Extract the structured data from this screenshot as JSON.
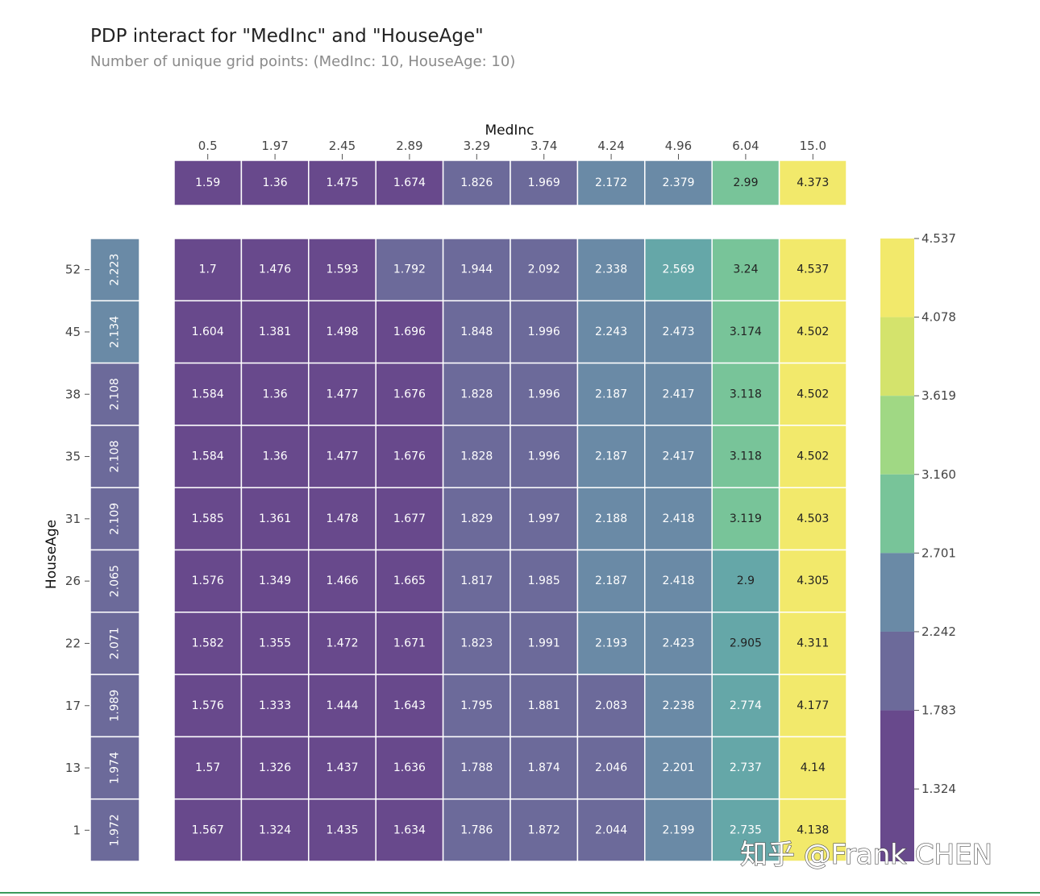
{
  "credit": "知乎 @Frank CHEN",
  "colors": {
    "palette": [
      "#68498c",
      "#6c6a9a",
      "#6a8aa6",
      "#65a7a8",
      "#78c499",
      "#a0d884",
      "#d4e36c",
      "#f2e96b"
    ],
    "text_dark": "#222222",
    "text_light": "#ffffff",
    "grid_line": "#ffffff",
    "accent_rule": "#3a9a5b"
  },
  "chart_data": {
    "type": "heatmap",
    "title": "PDP interact for \"MedInc\" and \"HouseAge\"",
    "subtitle": "Number of unique grid points: (MedInc: 10, HouseAge: 10)",
    "xlabel": "MedInc",
    "ylabel": "HouseAge",
    "x_ticks": [
      "0.5",
      "1.97",
      "2.45",
      "2.89",
      "3.29",
      "3.74",
      "4.24",
      "4.96",
      "6.04",
      "15.0"
    ],
    "y_ticks": [
      "52",
      "45",
      "38",
      "35",
      "31",
      "26",
      "22",
      "17",
      "13",
      "1"
    ],
    "top_marginal": [
      "1.59",
      "1.36",
      "1.475",
      "1.674",
      "1.826",
      "1.969",
      "2.172",
      "2.379",
      "2.99",
      "4.373"
    ],
    "left_marginal": [
      "2.223",
      "2.134",
      "2.108",
      "2.108",
      "2.109",
      "2.065",
      "2.071",
      "1.989",
      "1.974",
      "1.972"
    ],
    "values": [
      [
        "1.7",
        "1.476",
        "1.593",
        "1.792",
        "1.944",
        "2.092",
        "2.338",
        "2.569",
        "3.24",
        "4.537"
      ],
      [
        "1.604",
        "1.381",
        "1.498",
        "1.696",
        "1.848",
        "1.996",
        "2.243",
        "2.473",
        "3.174",
        "4.502"
      ],
      [
        "1.584",
        "1.36",
        "1.477",
        "1.676",
        "1.828",
        "1.996",
        "2.187",
        "2.417",
        "3.118",
        "4.502"
      ],
      [
        "1.584",
        "1.36",
        "1.477",
        "1.676",
        "1.828",
        "1.996",
        "2.187",
        "2.417",
        "3.118",
        "4.502"
      ],
      [
        "1.585",
        "1.361",
        "1.478",
        "1.677",
        "1.829",
        "1.997",
        "2.188",
        "2.418",
        "3.119",
        "4.503"
      ],
      [
        "1.576",
        "1.349",
        "1.466",
        "1.665",
        "1.817",
        "1.985",
        "2.187",
        "2.418",
        "2.9",
        "4.305"
      ],
      [
        "1.582",
        "1.355",
        "1.472",
        "1.671",
        "1.823",
        "1.991",
        "2.193",
        "2.423",
        "2.905",
        "4.311"
      ],
      [
        "1.576",
        "1.333",
        "1.444",
        "1.643",
        "1.795",
        "1.881",
        "2.083",
        "2.238",
        "2.774",
        "4.177"
      ],
      [
        "1.57",
        "1.326",
        "1.437",
        "1.636",
        "1.788",
        "1.874",
        "2.046",
        "2.201",
        "2.737",
        "4.14"
      ],
      [
        "1.567",
        "1.324",
        "1.435",
        "1.634",
        "1.786",
        "1.872",
        "2.044",
        "2.199",
        "2.735",
        "4.138"
      ]
    ],
    "colorbar_ticks": [
      "4.537",
      "4.078",
      "3.619",
      "3.160",
      "2.701",
      "2.242",
      "1.783",
      "1.324"
    ],
    "colorbar_range": [
      1.324,
      4.537
    ]
  }
}
